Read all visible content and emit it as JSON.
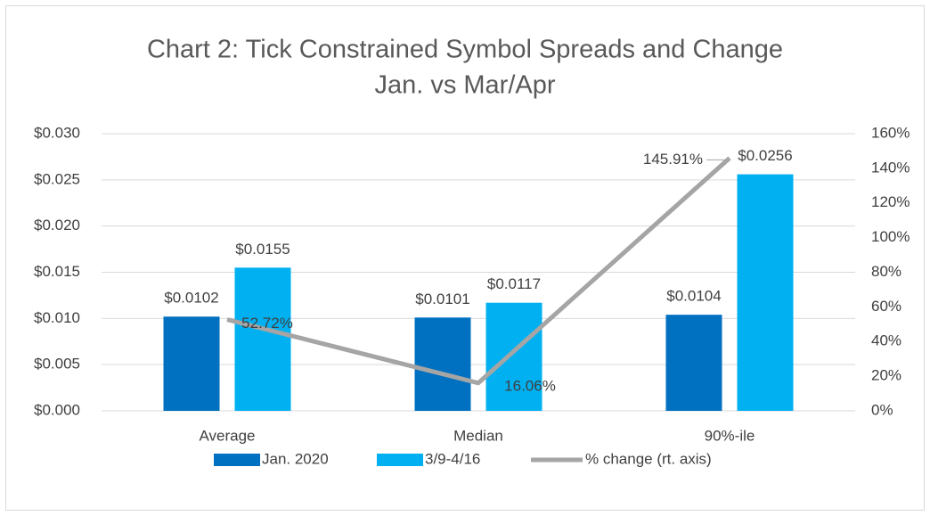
{
  "chart_data": {
    "type": "bar",
    "title": [
      "Chart 2: Tick Constrained Symbol Spreads and Change",
      "Jan. vs Mar/Apr"
    ],
    "categories": [
      "Average",
      "Median",
      "90%-ile"
    ],
    "series": [
      {
        "name": "Jan. 2020",
        "color": "#0070c0",
        "values": [
          0.0102,
          0.0101,
          0.0104
        ],
        "value_labels": [
          "$0.0102",
          "$0.0101",
          "$0.0104"
        ]
      },
      {
        "name": "3/9-4/16",
        "color": "#00b0f0",
        "values": [
          0.0155,
          0.0117,
          0.0256
        ],
        "value_labels": [
          "$0.0155",
          "$0.0117",
          "$0.0256"
        ]
      },
      {
        "name": "% change (rt. axis)",
        "type": "line",
        "axis": "y2",
        "color": "#a5a5a5",
        "values": [
          52.72,
          16.06,
          145.91
        ],
        "value_labels": [
          "52.72%",
          "16.06%",
          "145.91%"
        ]
      }
    ],
    "ylim": [
      0,
      0.03
    ],
    "yticks": [
      {
        "value": 0,
        "label": "$0.000"
      },
      {
        "value": 0.005,
        "label": "$0.005"
      },
      {
        "value": 0.01,
        "label": "$0.010"
      },
      {
        "value": 0.015,
        "label": "$0.015"
      },
      {
        "value": 0.02,
        "label": "$0.020"
      },
      {
        "value": 0.025,
        "label": "$0.025"
      },
      {
        "value": 0.03,
        "label": "$0.030"
      }
    ],
    "y2lim": [
      0,
      160
    ],
    "y2ticks": [
      {
        "value": 0,
        "label": "0%"
      },
      {
        "value": 20,
        "label": "20%"
      },
      {
        "value": 40,
        "label": "40%"
      },
      {
        "value": 60,
        "label": "60%"
      },
      {
        "value": 80,
        "label": "80%"
      },
      {
        "value": 100,
        "label": "100%"
      },
      {
        "value": 120,
        "label": "120%"
      },
      {
        "value": 140,
        "label": "140%"
      },
      {
        "value": 160,
        "label": "160%"
      }
    ],
    "grid": true,
    "legend": "bottom"
  }
}
